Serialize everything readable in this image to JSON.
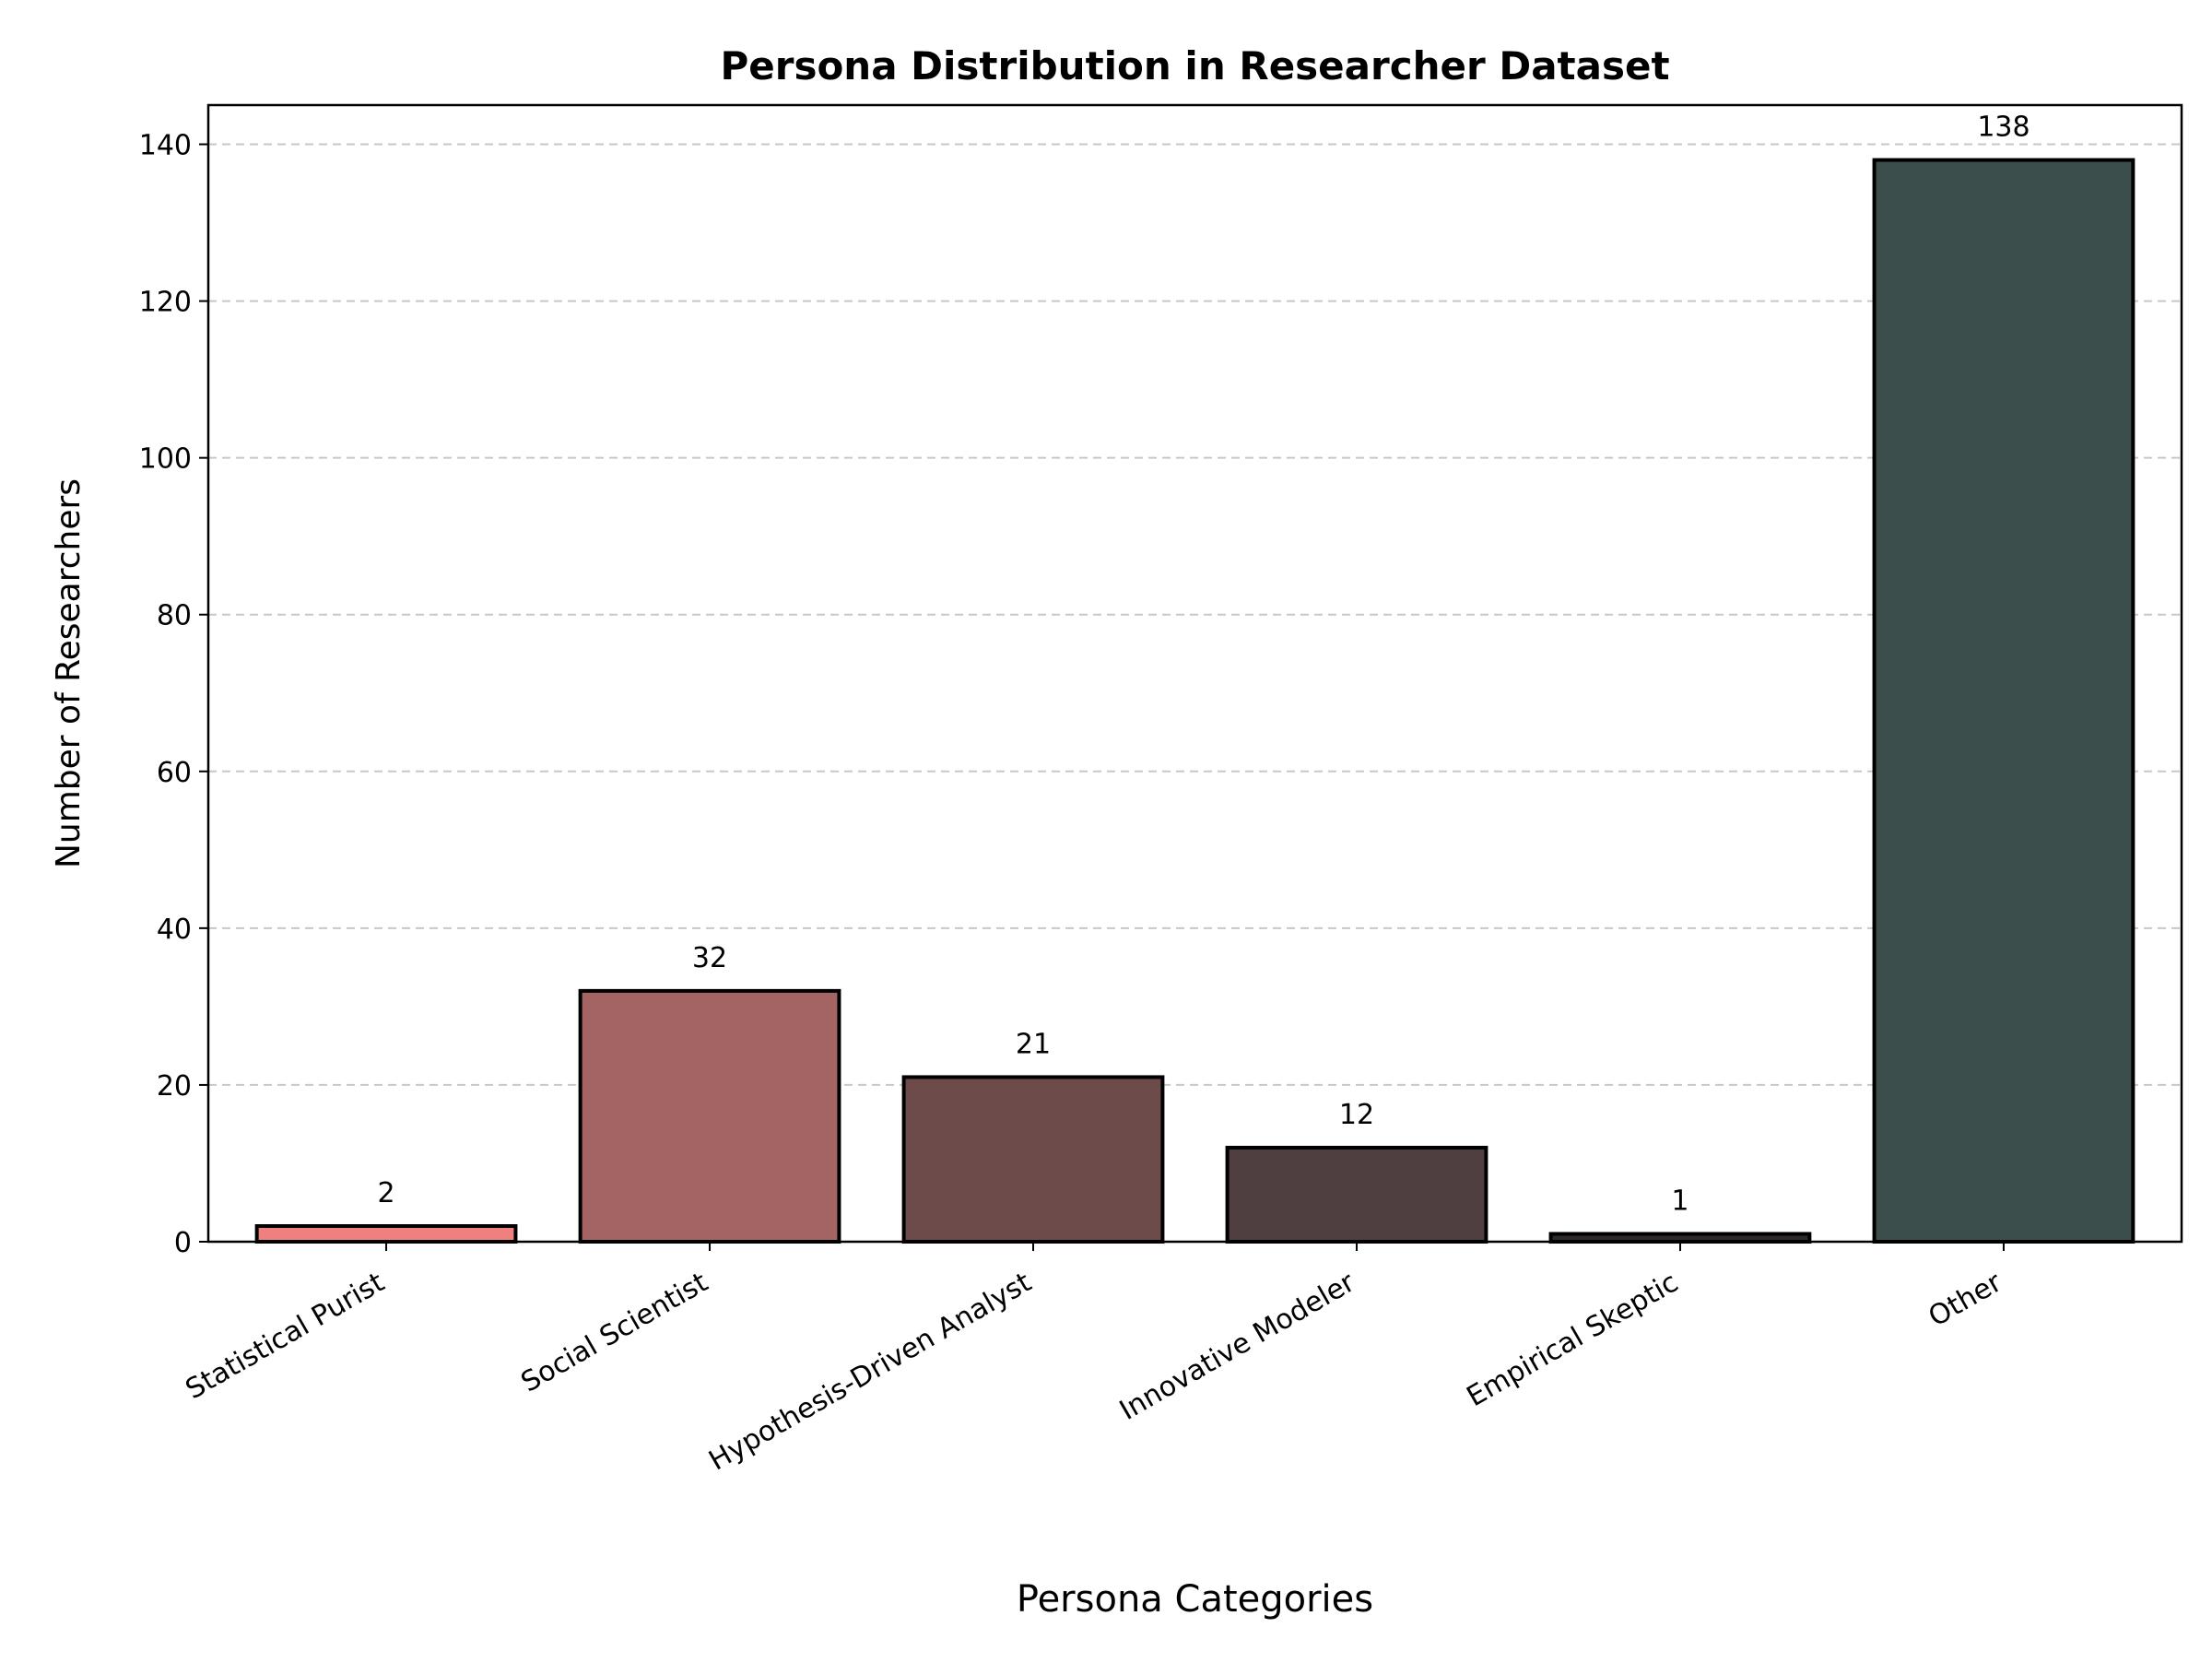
{
  "chart_data": {
    "type": "bar",
    "title": "Persona Distribution in Researcher Dataset",
    "xlabel": "Persona Categories",
    "ylabel": "Number of Researchers",
    "categories": [
      "Statistical Purist",
      "Social Scientist",
      "Hypothesis-Driven Analyst",
      "Innovative Modeler",
      "Empirical Skeptic",
      "Other"
    ],
    "values": [
      2,
      32,
      21,
      12,
      1,
      138
    ],
    "data_labels": [
      "2",
      "32",
      "21",
      "12",
      "1",
      "138"
    ],
    "colors": [
      "#f08080",
      "#a46464",
      "#6e4b4b",
      "#503f40",
      "#2f2a2a",
      "#3b4e4b"
    ],
    "edge_color": "#000000",
    "ylim": [
      0,
      145
    ],
    "yticks": [
      0,
      20,
      40,
      60,
      80,
      100,
      120,
      140
    ],
    "ytick_labels": [
      "0",
      "20",
      "40",
      "60",
      "80",
      "100",
      "120",
      "140"
    ],
    "grid": "y-dashed",
    "legend": "none"
  }
}
